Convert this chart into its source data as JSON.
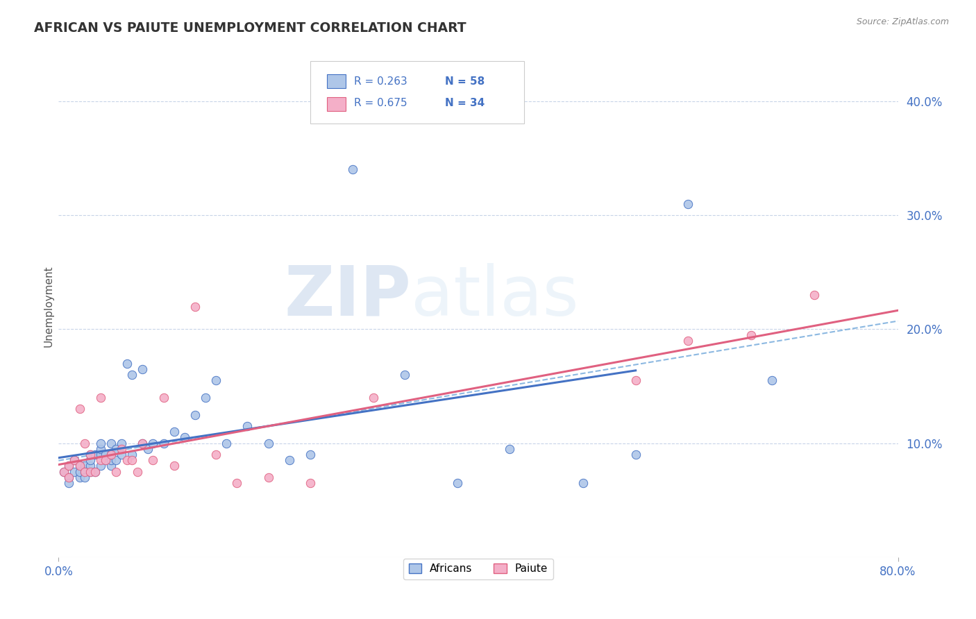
{
  "title": "AFRICAN VS PAIUTE UNEMPLOYMENT CORRELATION CHART",
  "source": "Source: ZipAtlas.com",
  "ylabel": "Unemployment",
  "xlim": [
    0.0,
    0.8
  ],
  "ylim": [
    0.0,
    0.44
  ],
  "yticks": [
    0.1,
    0.2,
    0.3,
    0.4
  ],
  "ytick_labels": [
    "10.0%",
    "20.0%",
    "30.0%",
    "40.0%"
  ],
  "legend_R1": "R = 0.263",
  "legend_N1": "N = 58",
  "legend_R2": "R = 0.675",
  "legend_N2": "N = 34",
  "africans_color": "#aec6e8",
  "paiute_color": "#f4afc8",
  "line_africans_color": "#4472c4",
  "line_paiute_color": "#e06080",
  "watermark_zip": "ZIP",
  "watermark_atlas": "atlas",
  "background_color": "#ffffff",
  "grid_color": "#c8d4e8",
  "africans_x": [
    0.005,
    0.01,
    0.01,
    0.01,
    0.015,
    0.015,
    0.02,
    0.02,
    0.02,
    0.025,
    0.025,
    0.025,
    0.03,
    0.03,
    0.03,
    0.03,
    0.035,
    0.035,
    0.04,
    0.04,
    0.04,
    0.04,
    0.045,
    0.045,
    0.05,
    0.05,
    0.05,
    0.05,
    0.055,
    0.055,
    0.06,
    0.06,
    0.065,
    0.07,
    0.07,
    0.08,
    0.08,
    0.085,
    0.09,
    0.1,
    0.11,
    0.12,
    0.13,
    0.14,
    0.15,
    0.16,
    0.18,
    0.2,
    0.22,
    0.24,
    0.28,
    0.33,
    0.38,
    0.43,
    0.5,
    0.55,
    0.6,
    0.68
  ],
  "africans_y": [
    0.075,
    0.07,
    0.08,
    0.065,
    0.075,
    0.085,
    0.07,
    0.08,
    0.075,
    0.08,
    0.075,
    0.07,
    0.075,
    0.08,
    0.085,
    0.09,
    0.075,
    0.09,
    0.08,
    0.09,
    0.095,
    0.1,
    0.085,
    0.09,
    0.08,
    0.085,
    0.09,
    0.1,
    0.085,
    0.095,
    0.09,
    0.1,
    0.17,
    0.09,
    0.16,
    0.1,
    0.165,
    0.095,
    0.1,
    0.1,
    0.11,
    0.105,
    0.125,
    0.14,
    0.155,
    0.1,
    0.115,
    0.1,
    0.085,
    0.09,
    0.34,
    0.16,
    0.065,
    0.095,
    0.065,
    0.09,
    0.31,
    0.155
  ],
  "paiute_x": [
    0.005,
    0.01,
    0.01,
    0.015,
    0.02,
    0.02,
    0.025,
    0.025,
    0.03,
    0.03,
    0.035,
    0.04,
    0.04,
    0.045,
    0.05,
    0.055,
    0.06,
    0.065,
    0.07,
    0.075,
    0.08,
    0.09,
    0.1,
    0.11,
    0.13,
    0.15,
    0.17,
    0.2,
    0.24,
    0.3,
    0.55,
    0.6,
    0.66,
    0.72
  ],
  "paiute_y": [
    0.075,
    0.07,
    0.08,
    0.085,
    0.08,
    0.13,
    0.075,
    0.1,
    0.075,
    0.09,
    0.075,
    0.085,
    0.14,
    0.085,
    0.09,
    0.075,
    0.095,
    0.085,
    0.085,
    0.075,
    0.1,
    0.085,
    0.14,
    0.08,
    0.22,
    0.09,
    0.065,
    0.07,
    0.065,
    0.14,
    0.155,
    0.19,
    0.195,
    0.23
  ]
}
